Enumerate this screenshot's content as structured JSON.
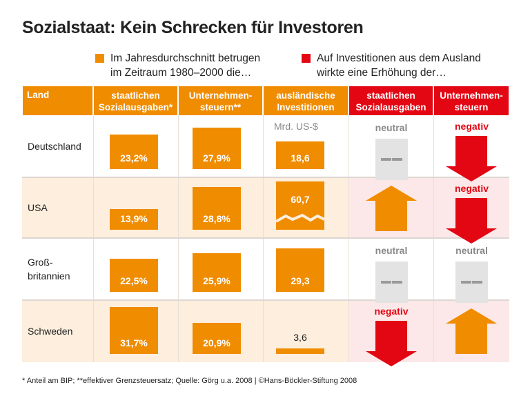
{
  "title": "Sozialstaat: Kein Schrecken für Investoren",
  "legend": [
    {
      "text_1": "Im Jahresdurchschnitt betrugen",
      "text_2": "im Zeitraum 1980–2000 die…",
      "color": "#f08c00"
    },
    {
      "text_1": "Auf Investitionen aus dem Ausland",
      "text_2": "wirkte eine Erhöhung der…",
      "color": "#e30613"
    }
  ],
  "headers": [
    {
      "line1": "Land",
      "line2": "",
      "color": "#f08c00"
    },
    {
      "line1": "staatlichen",
      "line2": "Sozialausgaben*",
      "color": "#f08c00"
    },
    {
      "line1": "Unternehmen-",
      "line2": "steuern**",
      "color": "#f08c00"
    },
    {
      "line1": "ausländische",
      "line2": "Investitionen",
      "color": "#f08c00"
    },
    {
      "line1": "staatlichen",
      "line2": "Sozialausgaben",
      "color": "#e30613"
    },
    {
      "line1": "Unternehmen-",
      "line2": "steuern",
      "color": "#e30613"
    }
  ],
  "unit_label": "Mrd. US-$",
  "chart_data": {
    "type": "table",
    "title": "Sozialstaat: Kein Schrecken für Investoren",
    "rows": [
      {
        "land_1": "Deutschland",
        "land_2": "",
        "sozial": 23.2,
        "sozial_label": "23,2%",
        "steuern": 27.9,
        "steuern_label": "27,9%",
        "invest": 18.6,
        "invest_label": "18,6",
        "invest_broken": false,
        "effect_sozial": "neutral",
        "effect_steuern": "negativ"
      },
      {
        "land_1": "USA",
        "land_2": "",
        "sozial": 13.9,
        "sozial_label": "13,9%",
        "steuern": 28.8,
        "steuern_label": "28,8%",
        "invest": 60.7,
        "invest_label": "60,7",
        "invest_broken": true,
        "effect_sozial": "positiv",
        "effect_steuern": "negativ"
      },
      {
        "land_1": "Groß-",
        "land_2": "britannien",
        "sozial": 22.5,
        "sozial_label": "22,5%",
        "steuern": 25.9,
        "steuern_label": "25,9%",
        "invest": 29.3,
        "invest_label": "29,3",
        "invest_broken": false,
        "effect_sozial": "neutral",
        "effect_steuern": "neutral"
      },
      {
        "land_1": "Schweden",
        "land_2": "",
        "sozial": 31.7,
        "sozial_label": "31,7%",
        "steuern": 20.9,
        "steuern_label": "20,9%",
        "invest": 3.6,
        "invest_label": "3,6",
        "invest_broken": false,
        "effect_sozial": "negativ",
        "effect_steuern": "positiv"
      }
    ],
    "colors": {
      "orange": "#f08c00",
      "red": "#e30613",
      "neutral": "#e3e3e3",
      "row_alt": "#fdeedd",
      "row_alt_red": "#fce8e8"
    }
  },
  "footer": "* Anteil am BIP; **effektiver Grenzsteuersatz; Quelle: Görg u.a. 2008 | ©Hans-Böckler-Stiftung 2008"
}
